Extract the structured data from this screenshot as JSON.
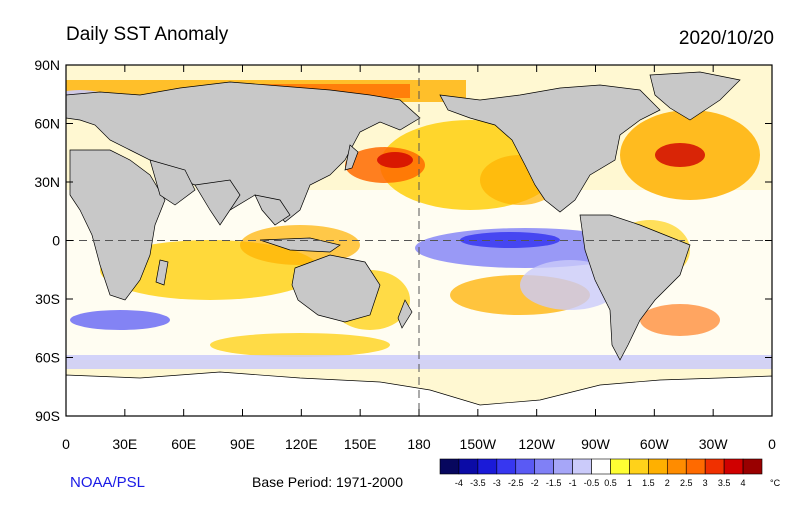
{
  "title": "Daily SST Anomaly",
  "date": "2020/10/20",
  "credit": "NOAA/PSL",
  "base_period": "Base Period: 1971-2000",
  "lat_labels": [
    "90N",
    "60N",
    "30N",
    "0",
    "30S",
    "60S",
    "90S"
  ],
  "lon_labels": [
    "0",
    "30E",
    "60E",
    "90E",
    "120E",
    "150E",
    "180",
    "150W",
    "120W",
    "90W",
    "60W",
    "30W",
    "0"
  ],
  "colorbar": {
    "unit": "°C",
    "labels": [
      "-4",
      "-3.5",
      "-3",
      "-2.5",
      "-2",
      "-1.5",
      "-1",
      "-0.5",
      "0.5",
      "1",
      "1.5",
      "2",
      "2.5",
      "3",
      "3.5",
      "4"
    ],
    "colors": [
      "#07075e",
      "#0b0ba6",
      "#1a1ad8",
      "#3737f0",
      "#5a5af4",
      "#8080f6",
      "#a6a6f8",
      "#cbcbfa",
      "#ffffff",
      "#ffff33",
      "#ffd21a",
      "#ffb000",
      "#ff8c00",
      "#ff6a00",
      "#f03000",
      "#d00000",
      "#990000"
    ]
  },
  "colors": {
    "land": "#c8c8c8",
    "ice": "#ffffff",
    "frame": "#000000"
  }
}
